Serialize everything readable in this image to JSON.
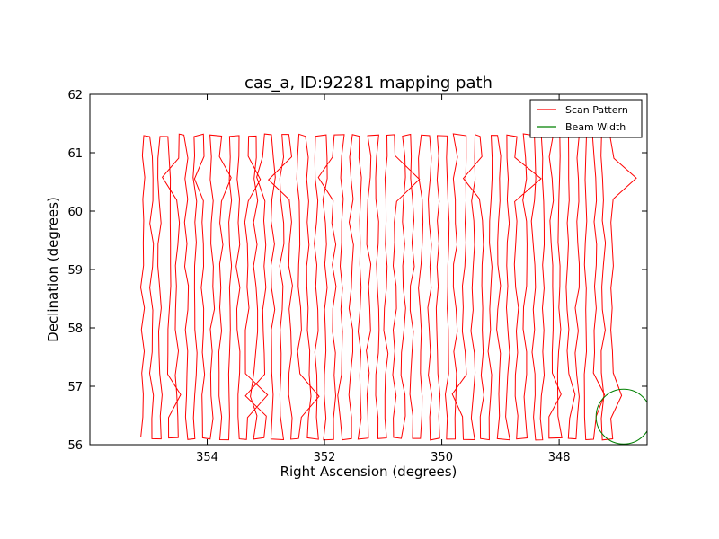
{
  "chart_data": {
    "type": "line",
    "title": "cas_a, ID:92281 mapping path",
    "xlabel": "Right Ascension (degrees)",
    "ylabel": "Declination (degrees)",
    "xlim": [
      356.0,
      346.5
    ],
    "ylim": [
      56.0,
      62.0
    ],
    "x_ticks": [
      354,
      352,
      350,
      348
    ],
    "y_ticks": [
      56,
      57,
      58,
      59,
      60,
      61,
      62
    ],
    "grid": false,
    "legend": {
      "placement": "upper-right",
      "entries": [
        {
          "label": "Scan Pattern",
          "color": "#ff0000"
        },
        {
          "label": "Beam Width",
          "color": "#008000"
        }
      ]
    },
    "scan": {
      "x_start": 355.1,
      "x_end": 347.1,
      "dec_low": 56.1,
      "dec_high": 61.3,
      "legs": 55,
      "color": "#ff0000"
    },
    "beam": {
      "center_ra": 346.9,
      "center_dec": 56.48,
      "radius_deg": 0.47,
      "color": "#008000"
    }
  }
}
